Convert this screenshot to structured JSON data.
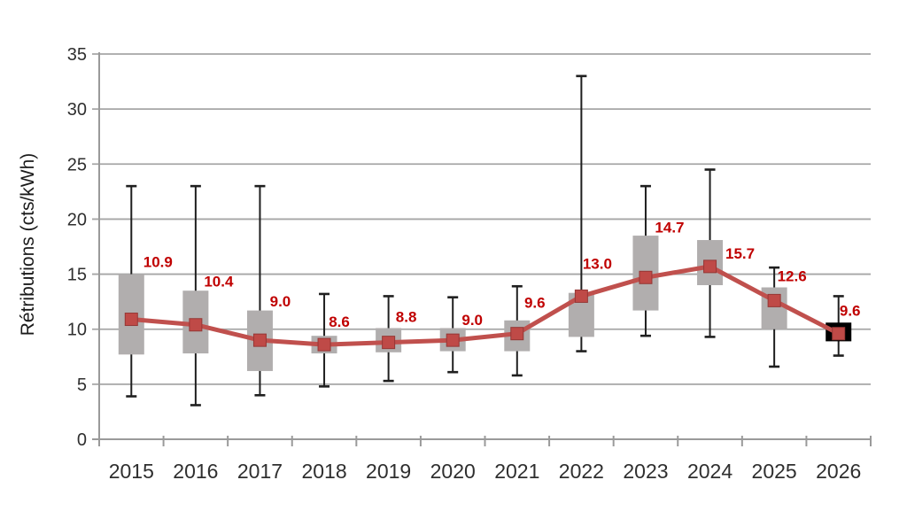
{
  "page": {
    "background": "#ffffff"
  },
  "chart_data": {
    "type": "box-whisker-line",
    "title": "",
    "ylabel": "Rétributions (cts/kWh)",
    "xlabel": "",
    "grid": true,
    "legend_position": "none",
    "y_axis": {
      "min": 0,
      "max": 35,
      "step": 5
    },
    "categories": [
      "2015",
      "2016",
      "2017",
      "2018",
      "2019",
      "2020",
      "2021",
      "2022",
      "2023",
      "2024",
      "2025",
      "2026"
    ],
    "series": [
      {
        "name": "median-line",
        "type": "line",
        "values": [
          10.9,
          10.4,
          9.0,
          8.6,
          8.8,
          9.0,
          9.6,
          13.0,
          14.7,
          15.7,
          12.6,
          9.6
        ],
        "labels": [
          "10.9",
          "10.4",
          "9.0",
          "8.6",
          "8.8",
          "9.0",
          "9.6",
          "13.0",
          "14.7",
          "15.7",
          "12.6",
          "9.6"
        ]
      },
      {
        "name": "interquartile-box",
        "type": "box",
        "low": [
          7.7,
          7.8,
          6.2,
          7.8,
          7.9,
          8.0,
          8.0,
          9.3,
          11.7,
          14.0,
          10.0,
          8.9
        ],
        "high": [
          15.0,
          13.5,
          11.7,
          9.4,
          10.1,
          10.1,
          10.8,
          13.3,
          18.5,
          18.1,
          13.8,
          10.6
        ],
        "highlight_index": 11
      },
      {
        "name": "range-whisker",
        "type": "whisker",
        "low": [
          3.9,
          3.1,
          4.0,
          4.8,
          5.3,
          6.1,
          5.8,
          8.0,
          9.4,
          9.3,
          6.6,
          7.6
        ],
        "high": [
          23.0,
          23.0,
          23.0,
          13.2,
          13.0,
          12.9,
          13.9,
          33.0,
          23.0,
          24.5,
          15.6,
          13.0
        ]
      }
    ],
    "label_offsets": {
      "dx": [
        30,
        26,
        23,
        17,
        20,
        22,
        20,
        18,
        27,
        34,
        20,
        13
      ],
      "dy": [
        -65,
        -49,
        -44,
        -26,
        -29,
        -23,
        -35,
        -37,
        -57,
        -15,
        -28,
        -26
      ]
    },
    "colors": {
      "line": "#c0504d",
      "marker": "#bf4a47",
      "marker_edge": "#953735",
      "box": "#b1aeae",
      "box_highlight": "#000000",
      "whisker": "#1f1f1f",
      "gridline": "#a6a6a6",
      "axis": "#9a9a9a",
      "data_label": "#c00000",
      "tick_label": "#2f2f2f",
      "axis_title": "#1a1a1a"
    }
  }
}
